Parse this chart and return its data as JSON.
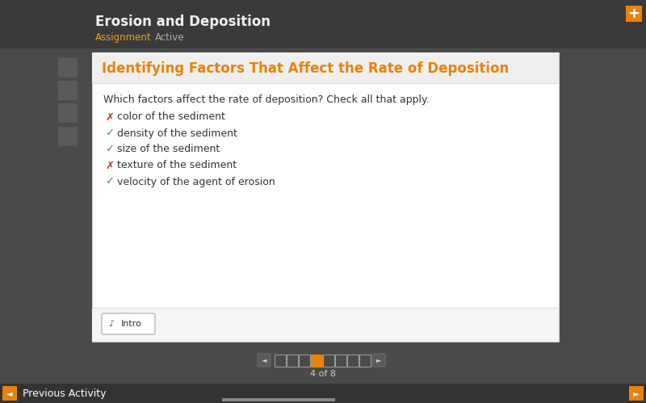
{
  "bg_color": "#4a4a4a",
  "header_bg": "#3a3a3a",
  "header_title": "Erosion and Deposition",
  "header_title_color": "#f0f0f0",
  "header_sub1": "Assignment",
  "header_sub2": "Active",
  "header_sub_color": "#e8a020",
  "header_sub2_color": "#aaaaaa",
  "card_bg": "#ffffff",
  "card_title": "Identifying Factors That Affect the Rate of Deposition",
  "card_title_color": "#e8820a",
  "card_title_bg": "#eeeeee",
  "question_text": "Which factors affect the rate of deposition? Check all that apply.",
  "question_color": "#333333",
  "items": [
    {
      "text": "color of the sediment",
      "correct": false
    },
    {
      "text": "density of the sediment",
      "correct": true
    },
    {
      "text": "size of the sediment",
      "correct": true
    },
    {
      "text": "texture of the sediment",
      "correct": false
    },
    {
      "text": "velocity of the agent of erosion",
      "correct": true
    }
  ],
  "check_color": "#4a9a4a",
  "x_color": "#cc3322",
  "intro_btn_text": "Intro",
  "nav_dots": 8,
  "nav_active": 4,
  "nav_active_color": "#e8820a",
  "nav_inactive_color": "#888888",
  "nav_text": "4 of 8",
  "footer_bg": "#333333",
  "footer_text": "Previous Activity",
  "footer_text_color": "#ffffff",
  "plus_btn_color": "#e8820a",
  "sidebar_icon_bg": "#5a5a5a"
}
